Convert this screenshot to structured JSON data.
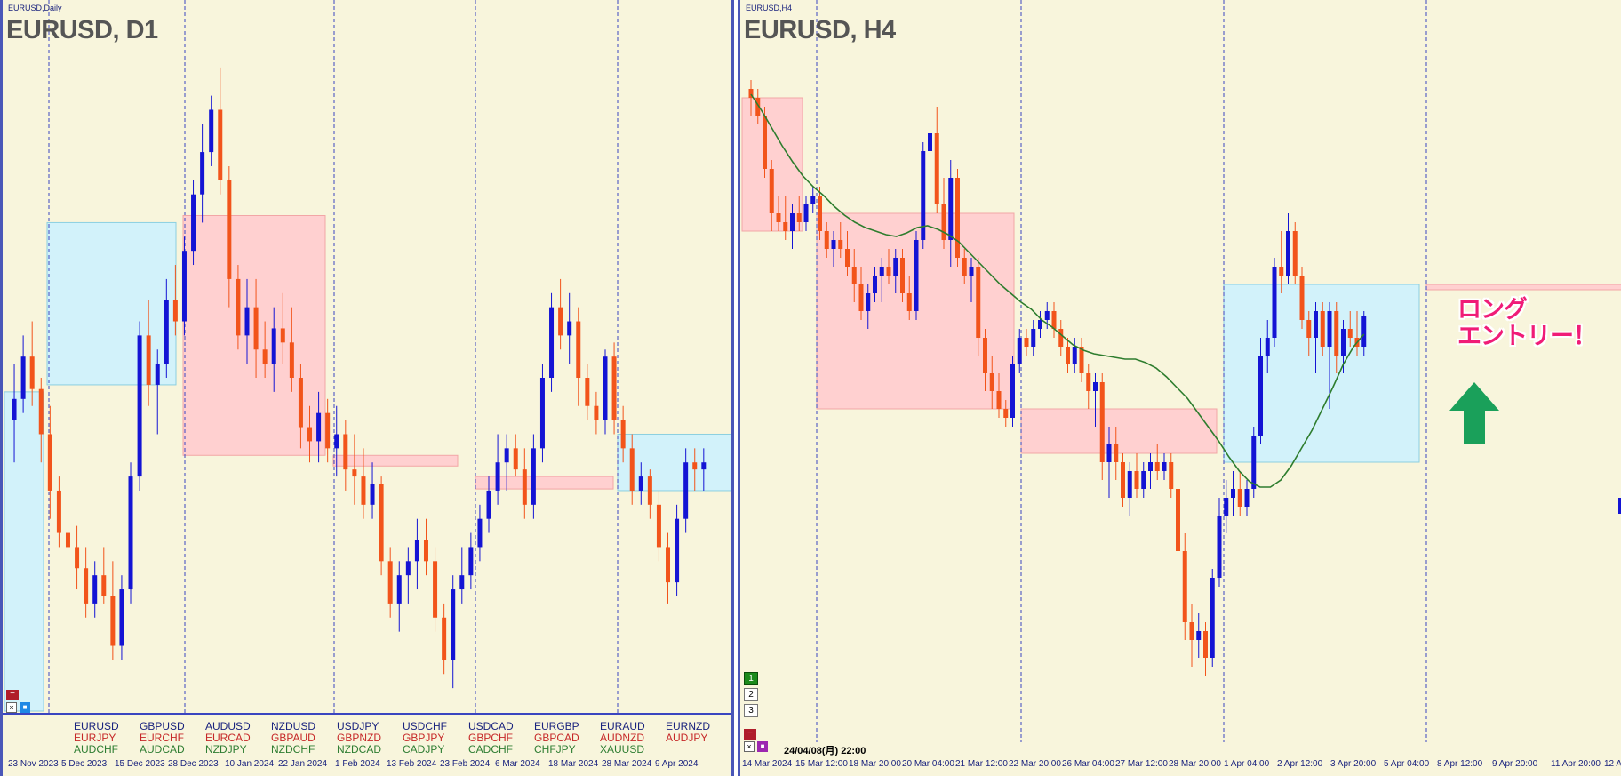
{
  "left_panel": {
    "tab": "EURUSD,Daily",
    "title": "EURUSD, D1",
    "x_labels": [
      "23 Nov 2023",
      "5 Dec 2023",
      "15 Dec 2023",
      "28 Dec 2023",
      "10 Jan 2024",
      "22 Jan 2024",
      "1 Feb 2024",
      "13 Feb 2024",
      "23 Feb 2024",
      "6 Mar 2024",
      "18 Mar 2024",
      "28 Mar 2024",
      "9 Apr 2024"
    ],
    "symbols": [
      [
        "EURUSD",
        "EURJPY",
        "AUDCHF"
      ],
      [
        "GBPUSD",
        "EURCHF",
        "AUDCAD"
      ],
      [
        "AUDUSD",
        "EURCAD",
        "NZDJPY"
      ],
      [
        "NZDUSD",
        "GBPAUD",
        "NZDCHF"
      ],
      [
        "USDJPY",
        "GBPNZD",
        "NZDCAD"
      ],
      [
        "USDCHF",
        "GBPJPY",
        "CADJPY"
      ],
      [
        "USDCAD",
        "GBPCHF",
        "CADCHF"
      ],
      [
        "EURGBP",
        "GBPCAD",
        "CHFJPY"
      ],
      [
        "EURAUD",
        "AUDNZD",
        "XAUUSD"
      ],
      [
        "EURNZD",
        "AUDJPY",
        ""
      ]
    ]
  },
  "right_panel": {
    "tab": "EURUSD,H4",
    "title": "EURUSD, H4",
    "x_labels": [
      "14 Mar 2024",
      "15 Mar 12:00",
      "18 Mar 20:00",
      "20 Mar 04:00",
      "21 Mar 12:00",
      "22 Mar 20:00",
      "26 Mar 04:00",
      "27 Mar 12:00",
      "28 Mar 20:00",
      "1 Apr 04:00",
      "2 Apr 12:00",
      "3 Apr 20:00",
      "5 Apr 04:00",
      "8 Apr 12:00",
      "9 Apr 20:00",
      "11 Apr 20:00",
      "12 A"
    ],
    "buttons": [
      "1",
      "2",
      "3"
    ],
    "cursor_date": "24/04/08(月) 22:00",
    "annotation_line1": "ロング",
    "annotation_line2": "エントリー！"
  },
  "colors": {
    "bull": "#1414d4",
    "bear": "#f2541b",
    "ma": "#2e7d2e",
    "pink_zone": "#ffd0d0",
    "blue_zone": "#d2f2fa",
    "arrow": "#1aa05a",
    "background": "#f8f5dc"
  },
  "chart_data": [
    {
      "type": "candlestick",
      "title": "EURUSD, D1",
      "x_labels": [
        "23 Nov 2023",
        "5 Dec 2023",
        "15 Dec 2023",
        "28 Dec 2023",
        "10 Jan 2024",
        "22 Jan 2024",
        "1 Feb 2024",
        "13 Feb 2024",
        "23 Feb 2024",
        "6 Mar 2024",
        "18 Mar 2024",
        "28 Mar 2024",
        "9 Apr 2024"
      ],
      "candles_ohlc": [
        [
          1.089,
          1.093,
          1.086,
          1.0905
        ],
        [
          1.0905,
          1.095,
          1.0895,
          1.0935
        ],
        [
          1.0935,
          1.096,
          1.09,
          1.0912
        ],
        [
          1.0912,
          1.092,
          1.086,
          1.088
        ],
        [
          1.088,
          1.09,
          1.082,
          1.084
        ],
        [
          1.084,
          1.085,
          1.08,
          1.081
        ],
        [
          1.081,
          1.083,
          1.079,
          1.08
        ],
        [
          1.08,
          1.0815,
          1.077,
          1.0785
        ],
        [
          1.0785,
          1.08,
          1.075,
          1.076
        ],
        [
          1.076,
          1.079,
          1.075,
          1.078
        ],
        [
          1.078,
          1.08,
          1.076,
          1.0765
        ],
        [
          1.0765,
          1.079,
          1.072,
          1.073
        ],
        [
          1.073,
          1.078,
          1.072,
          1.077
        ],
        [
          1.077,
          1.086,
          1.076,
          1.085
        ],
        [
          1.085,
          1.096,
          1.084,
          1.095
        ],
        [
          1.095,
          1.0975,
          1.09,
          1.0915
        ],
        [
          1.0915,
          1.094,
          1.088,
          1.093
        ],
        [
          1.093,
          1.099,
          1.092,
          1.0975
        ],
        [
          1.0975,
          1.1,
          1.095,
          1.096
        ],
        [
          1.096,
          1.102,
          1.095,
          1.101
        ],
        [
          1.101,
          1.106,
          1.1,
          1.105
        ],
        [
          1.105,
          1.11,
          1.103,
          1.108
        ],
        [
          1.108,
          1.112,
          1.107,
          1.111
        ],
        [
          1.111,
          1.114,
          1.105,
          1.106
        ],
        [
          1.106,
          1.107,
          1.097,
          1.099
        ],
        [
          1.099,
          1.1,
          1.094,
          1.095
        ],
        [
          1.095,
          1.099,
          1.093,
          1.097
        ],
        [
          1.097,
          1.099,
          1.092,
          1.094
        ],
        [
          1.094,
          1.096,
          1.092,
          1.093
        ],
        [
          1.093,
          1.097,
          1.091,
          1.0955
        ],
        [
          1.0955,
          1.098,
          1.093,
          1.0945
        ],
        [
          1.0945,
          1.097,
          1.091,
          1.092
        ],
        [
          1.092,
          1.093,
          1.087,
          1.0885
        ],
        [
          1.0885,
          1.09,
          1.086,
          1.0875
        ],
        [
          1.0875,
          1.091,
          1.086,
          1.0895
        ],
        [
          1.0895,
          1.0905,
          1.086,
          1.087
        ],
        [
          1.087,
          1.09,
          1.085,
          1.088
        ],
        [
          1.088,
          1.089,
          1.084,
          1.0855
        ],
        [
          1.0855,
          1.088,
          1.083,
          1.085
        ],
        [
          1.085,
          1.087,
          1.082,
          1.083
        ],
        [
          1.083,
          1.086,
          1.082,
          1.0845
        ],
        [
          1.0845,
          1.085,
          1.078,
          1.079
        ],
        [
          1.079,
          1.08,
          1.075,
          1.076
        ],
        [
          1.076,
          1.079,
          1.074,
          1.078
        ],
        [
          1.078,
          1.08,
          1.076,
          1.079
        ],
        [
          1.079,
          1.082,
          1.077,
          1.0805
        ],
        [
          1.0805,
          1.082,
          1.078,
          1.079
        ],
        [
          1.079,
          1.08,
          1.074,
          1.075
        ],
        [
          1.075,
          1.076,
          1.071,
          1.072
        ],
        [
          1.072,
          1.078,
          1.07,
          1.077
        ],
        [
          1.077,
          1.08,
          1.076,
          1.078
        ],
        [
          1.078,
          1.081,
          1.077,
          1.08
        ],
        [
          1.08,
          1.083,
          1.079,
          1.082
        ],
        [
          1.082,
          1.085,
          1.081,
          1.084
        ],
        [
          1.084,
          1.088,
          1.083,
          1.086
        ],
        [
          1.086,
          1.088,
          1.084,
          1.087
        ],
        [
          1.087,
          1.088,
          1.085,
          1.0855
        ],
        [
          1.0855,
          1.087,
          1.082,
          1.083
        ],
        [
          1.083,
          1.088,
          1.082,
          1.087
        ],
        [
          1.087,
          1.093,
          1.086,
          1.092
        ],
        [
          1.092,
          1.098,
          1.091,
          1.097
        ],
        [
          1.097,
          1.099,
          1.094,
          1.095
        ],
        [
          1.095,
          1.098,
          1.093,
          1.096
        ],
        [
          1.096,
          1.097,
          1.09,
          1.092
        ],
        [
          1.092,
          1.093,
          1.089,
          1.09
        ],
        [
          1.09,
          1.091,
          1.088,
          1.089
        ],
        [
          1.089,
          1.094,
          1.088,
          1.0935
        ],
        [
          1.0935,
          1.0945,
          1.088,
          1.089
        ],
        [
          1.089,
          1.09,
          1.086,
          1.087
        ],
        [
          1.087,
          1.088,
          1.083,
          1.084
        ],
        [
          1.084,
          1.086,
          1.083,
          1.085
        ],
        [
          1.085,
          1.0855,
          1.082,
          1.083
        ],
        [
          1.083,
          1.084,
          1.079,
          1.08
        ],
        [
          1.08,
          1.081,
          1.076,
          1.0775
        ],
        [
          1.0775,
          1.083,
          1.0765,
          1.082
        ],
        [
          1.082,
          1.087,
          1.081,
          1.086
        ],
        [
          1.086,
          1.087,
          1.084,
          1.0855
        ],
        [
          1.0855,
          1.087,
          1.084,
          1.086
        ]
      ]
    },
    {
      "type": "candlestick",
      "title": "EURUSD, H4",
      "x_labels": [
        "14 Mar 2024",
        "15 Mar 12:00",
        "18 Mar 20:00",
        "20 Mar 04:00",
        "21 Mar 12:00",
        "22 Mar 20:00",
        "26 Mar 04:00",
        "27 Mar 12:00",
        "28 Mar 20:00",
        "1 Apr 04:00",
        "2 Apr 12:00",
        "3 Apr 20:00",
        "5 Apr 04:00",
        "8 Apr 12:00",
        "9 Apr 20:00",
        "11 Apr 20:00"
      ],
      "candles_ohlc": [
        [
          1.095,
          1.0955,
          1.0935,
          1.0945
        ],
        [
          1.0945,
          1.095,
          1.093,
          1.0935
        ],
        [
          1.0935,
          1.094,
          1.09,
          1.0905
        ],
        [
          1.0905,
          1.091,
          1.087,
          1.088
        ],
        [
          1.088,
          1.089,
          1.087,
          1.0875
        ],
        [
          1.0875,
          1.089,
          1.0865,
          1.087
        ],
        [
          1.087,
          1.0885,
          1.086,
          1.088
        ],
        [
          1.088,
          1.089,
          1.087,
          1.0875
        ],
        [
          1.0875,
          1.089,
          1.087,
          1.0885
        ],
        [
          1.0885,
          1.0895,
          1.088,
          1.089
        ],
        [
          1.089,
          1.0895,
          1.0865,
          1.087
        ],
        [
          1.087,
          1.0875,
          1.0855,
          1.086
        ],
        [
          1.086,
          1.087,
          1.085,
          1.0865
        ],
        [
          1.0865,
          1.0875,
          1.0855,
          1.086
        ],
        [
          1.086,
          1.087,
          1.0845,
          1.085
        ],
        [
          1.085,
          1.086,
          1.083,
          1.084
        ],
        [
          1.084,
          1.085,
          1.082,
          1.0825
        ],
        [
          1.0825,
          1.084,
          1.0815,
          1.0835
        ],
        [
          1.0835,
          1.085,
          1.083,
          1.0845
        ],
        [
          1.0845,
          1.0855,
          1.083,
          1.085
        ],
        [
          1.085,
          1.086,
          1.084,
          1.0845
        ],
        [
          1.0845,
          1.086,
          1.0835,
          1.0855
        ],
        [
          1.0855,
          1.086,
          1.083,
          1.0835
        ],
        [
          1.0835,
          1.0845,
          1.082,
          1.0825
        ],
        [
          1.0825,
          1.087,
          1.082,
          1.0865
        ],
        [
          1.0865,
          1.092,
          1.086,
          1.0915
        ],
        [
          1.0915,
          1.0935,
          1.09,
          1.0925
        ],
        [
          1.0925,
          1.094,
          1.088,
          1.0885
        ],
        [
          1.0885,
          1.09,
          1.086,
          1.0865
        ],
        [
          1.0865,
          1.091,
          1.085,
          1.09
        ],
        [
          1.09,
          1.0905,
          1.085,
          1.0855
        ],
        [
          1.0855,
          1.086,
          1.084,
          1.0845
        ],
        [
          1.0845,
          1.0855,
          1.083,
          1.085
        ],
        [
          1.085,
          1.0855,
          1.08,
          1.081
        ],
        [
          1.081,
          1.0815,
          1.078,
          1.079
        ],
        [
          1.079,
          1.08,
          1.077,
          1.078
        ],
        [
          1.078,
          1.079,
          1.0765,
          1.077
        ],
        [
          1.077,
          1.0775,
          1.076,
          1.0765
        ],
        [
          1.0765,
          1.08,
          1.076,
          1.0795
        ],
        [
          1.0795,
          1.0815,
          1.079,
          1.081
        ],
        [
          1.081,
          1.0815,
          1.08,
          1.0805
        ],
        [
          1.0805,
          1.082,
          1.08,
          1.0815
        ],
        [
          1.0815,
          1.0825,
          1.081,
          1.082
        ],
        [
          1.082,
          1.083,
          1.0815,
          1.0825
        ],
        [
          1.0825,
          1.083,
          1.081,
          1.0815
        ],
        [
          1.0815,
          1.082,
          1.08,
          1.0805
        ],
        [
          1.0805,
          1.081,
          1.079,
          1.0795
        ],
        [
          1.0795,
          1.081,
          1.079,
          1.0805
        ],
        [
          1.0805,
          1.081,
          1.0785,
          1.079
        ],
        [
          1.079,
          1.0795,
          1.077,
          1.078
        ],
        [
          1.078,
          1.079,
          1.076,
          1.0785
        ],
        [
          1.0785,
          1.079,
          1.073,
          1.074
        ],
        [
          1.074,
          1.076,
          1.072,
          1.075
        ],
        [
          1.075,
          1.076,
          1.073,
          1.074
        ],
        [
          1.074,
          1.0745,
          1.0715,
          1.072
        ],
        [
          1.072,
          1.074,
          1.071,
          1.0735
        ],
        [
          1.0735,
          1.0745,
          1.072,
          1.0725
        ],
        [
          1.0725,
          1.074,
          1.072,
          1.0735
        ],
        [
          1.0735,
          1.0745,
          1.0725,
          1.074
        ],
        [
          1.074,
          1.075,
          1.073,
          1.0735
        ],
        [
          1.0735,
          1.0745,
          1.073,
          1.074
        ],
        [
          1.074,
          1.0745,
          1.072,
          1.0725
        ],
        [
          1.0725,
          1.073,
          1.068,
          1.069
        ],
        [
          1.069,
          1.07,
          1.064,
          1.065
        ],
        [
          1.065,
          1.066,
          1.0625,
          1.064
        ],
        [
          1.064,
          1.0655,
          1.063,
          1.0645
        ],
        [
          1.0645,
          1.065,
          1.062,
          1.063
        ],
        [
          1.063,
          1.068,
          1.0625,
          1.0675
        ],
        [
          1.0675,
          1.072,
          1.067,
          1.071
        ],
        [
          1.071,
          1.073,
          1.07,
          1.072
        ],
        [
          1.072,
          1.0735,
          1.071,
          1.0725
        ],
        [
          1.0725,
          1.0735,
          1.071,
          1.0715
        ],
        [
          1.0715,
          1.073,
          1.071,
          1.0725
        ],
        [
          1.0725,
          1.076,
          1.072,
          1.0755
        ],
        [
          1.0755,
          1.081,
          1.075,
          1.08
        ],
        [
          1.08,
          1.082,
          1.079,
          1.081
        ],
        [
          1.081,
          1.0855,
          1.0805,
          1.085
        ],
        [
          1.085,
          1.087,
          1.0835,
          1.0845
        ],
        [
          1.0845,
          1.088,
          1.084,
          1.087
        ],
        [
          1.087,
          1.0875,
          1.084,
          1.0845
        ],
        [
          1.0845,
          1.085,
          1.0815,
          1.082
        ],
        [
          1.082,
          1.0825,
          1.08,
          1.081
        ],
        [
          1.081,
          1.083,
          1.079,
          1.0825
        ],
        [
          1.0825,
          1.083,
          1.08,
          1.0805
        ],
        [
          1.0805,
          1.083,
          1.077,
          1.0825
        ],
        [
          1.0825,
          1.083,
          1.079,
          1.08
        ],
        [
          1.08,
          1.082,
          1.079,
          1.0815
        ],
        [
          1.0815,
          1.0825,
          1.0805,
          1.081
        ],
        [
          1.081,
          1.0825,
          1.08,
          1.0805
        ],
        [
          1.0805,
          1.0825,
          1.08,
          1.0822
        ]
      ],
      "moving_average": [
        1.0947,
        1.0938,
        1.0928,
        1.0918,
        1.0909,
        1.0901,
        1.0895,
        1.089,
        1.0884,
        1.0879,
        1.0875,
        1.0872,
        1.087,
        1.0868,
        1.0867,
        1.0869,
        1.0872,
        1.0873,
        1.0871,
        1.0868,
        1.0864,
        1.0858,
        1.0852,
        1.0846,
        1.084,
        1.0835,
        1.083,
        1.0826,
        1.082,
        1.0816,
        1.0811,
        1.0806,
        1.0803,
        1.0801,
        1.08,
        1.0799,
        1.0798,
        1.0798,
        1.0796,
        1.0793,
        1.0788,
        1.0782,
        1.0776,
        1.0768,
        1.076,
        1.0752,
        1.0743,
        1.0735,
        1.0729,
        1.0726,
        1.0726,
        1.073,
        1.0738,
        1.0748,
        1.0758,
        1.077,
        1.0782,
        1.0795,
        1.0805,
        1.0812
      ]
    }
  ]
}
